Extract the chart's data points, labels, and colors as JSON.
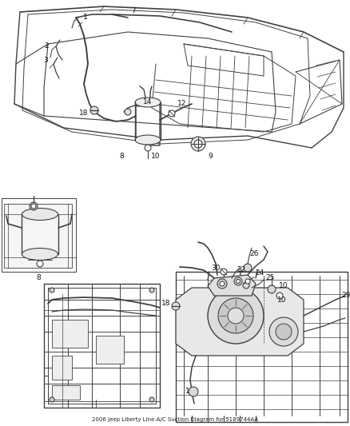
{
  "title": "2006 Jeep Liberty Line-A/C Suction Diagram for 5189744AA",
  "bg": "#ffffff",
  "lc": "#404040",
  "lc2": "#505050",
  "fig_w": 4.38,
  "fig_h": 5.33,
  "dpi": 100,
  "fs_label": 6.5,
  "fs_title": 5.0
}
